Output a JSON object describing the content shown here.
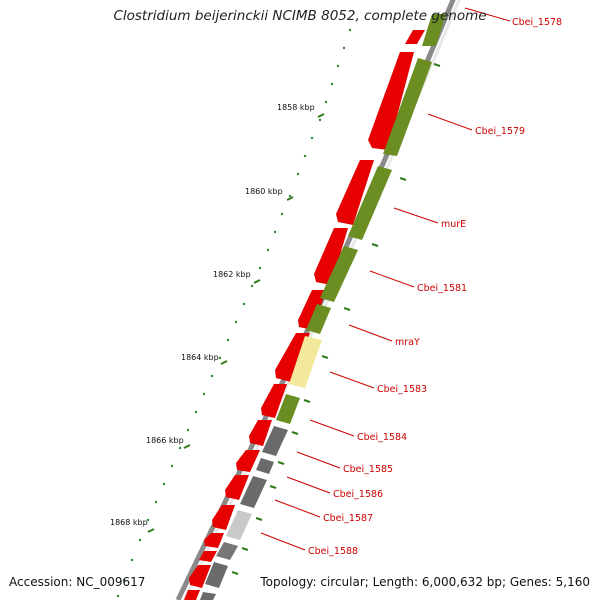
{
  "title": "Clostridium beijerinckii NCIMB 8052, complete genome",
  "footer": {
    "accession": "Accession: NC_009617",
    "summary": "Topology: circular; Length: 6,000,632 bp; Genes: 5,160"
  },
  "colors": {
    "backbone": "#8a8a8a",
    "forward_gene": "#e60000",
    "reverse_gene": "#6b8e23",
    "gene_label": "#cc0000",
    "tick": "#2e7d1a",
    "dot": "#2e8b2e"
  },
  "scale_labels": [
    "1858 kbp",
    "1860 kbp",
    "1862 kbp",
    "1864 kbp",
    "1866 kbp",
    "1868 kbp"
  ],
  "gene_labels": [
    "Cbei_1578",
    "Cbei_1579",
    "murE",
    "Cbei_1581",
    "mraY",
    "Cbei_1583",
    "Cbei_1584",
    "Cbei_1585",
    "Cbei_1586",
    "Cbei_1587",
    "Cbei_1588"
  ]
}
